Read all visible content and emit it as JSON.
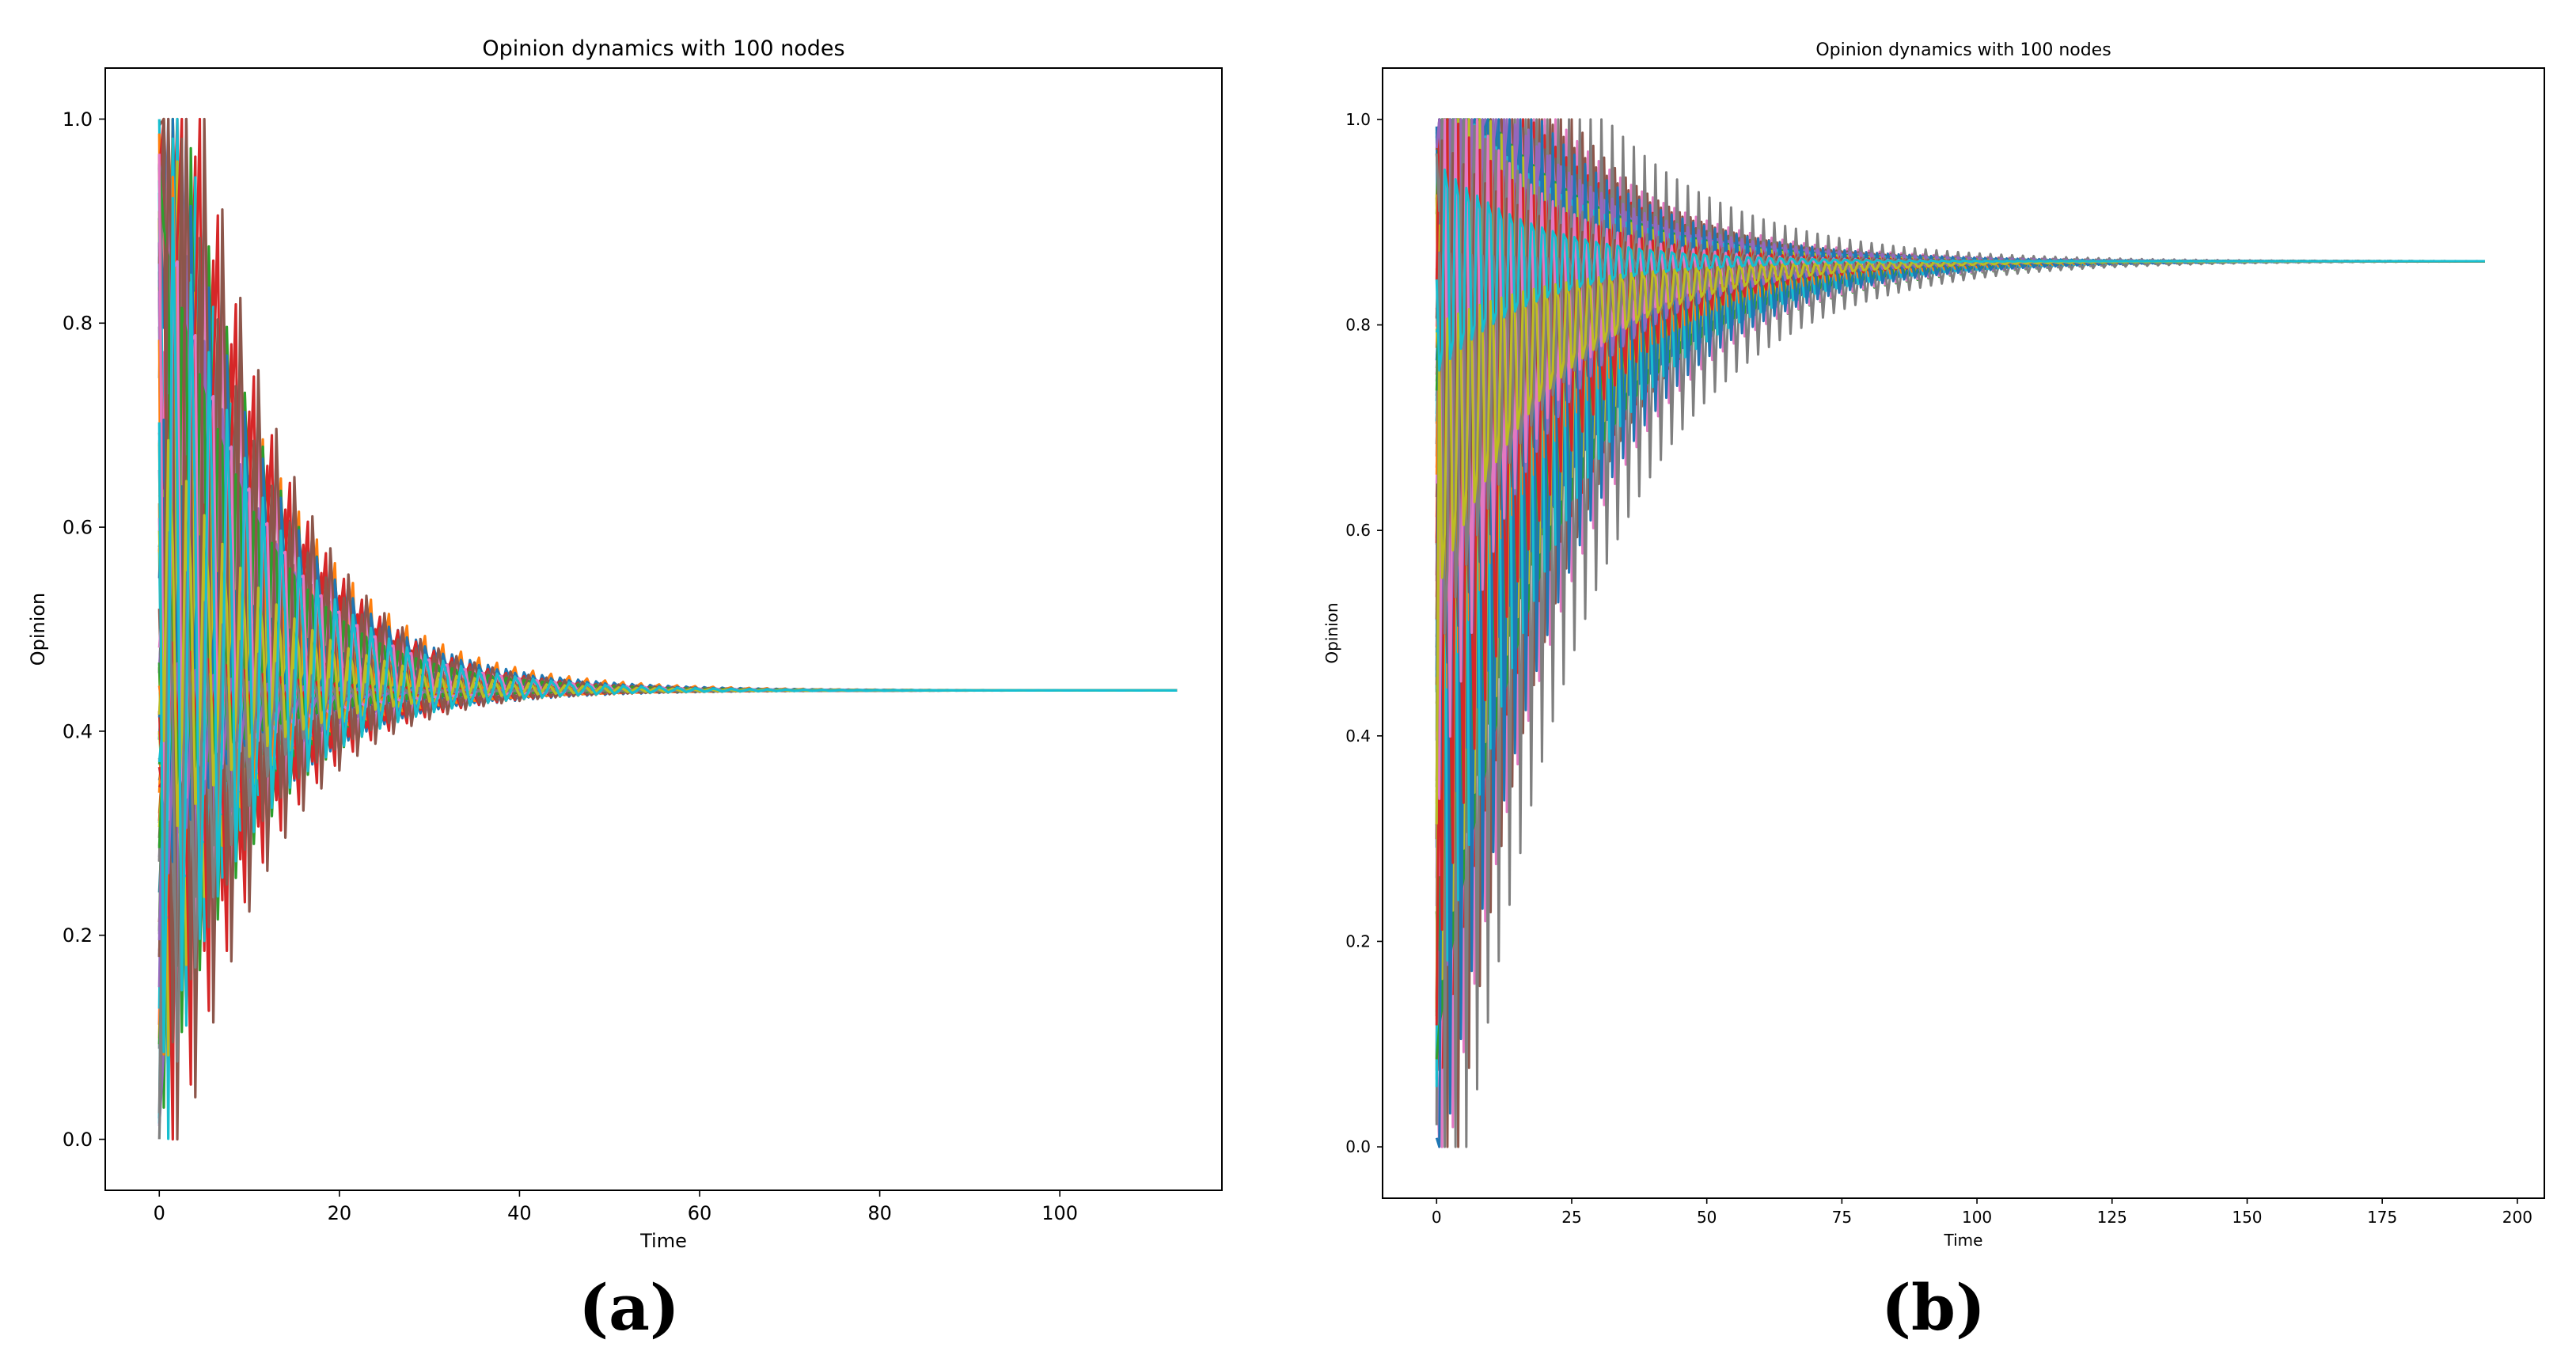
{
  "panels": [
    {
      "caption": "(a)",
      "chart_data": {
        "type": "line",
        "title": "Opinion dynamics with 100 nodes",
        "xlabel": "Time",
        "ylabel": "Opinion",
        "xlim": [
          -6,
          118
        ],
        "ylim": [
          -0.05,
          1.05
        ],
        "xticks": [
          0,
          20,
          40,
          60,
          80,
          100
        ],
        "yticks": [
          0.0,
          0.2,
          0.4,
          0.6,
          0.8,
          1.0
        ],
        "ytick_labels": [
          "0.0",
          "0.2",
          "0.4",
          "0.6",
          "0.8",
          "1.0"
        ],
        "grid": false,
        "legend": "none",
        "num_nodes": 100,
        "t_end": 113,
        "consensus_value": 0.44,
        "oscillation_decay_time": 9,
        "oscillation_period": 2,
        "initial_opinion_range": [
          0.0,
          1.0
        ],
        "series_colors": [
          "#1f77b4",
          "#ff7f0e",
          "#2ca02c",
          "#d62728",
          "#9467bd",
          "#8c564b",
          "#e377c2",
          "#7f7f7f",
          "#bcbd22",
          "#17becf"
        ]
      }
    },
    {
      "caption": "(b)",
      "chart_data": {
        "type": "line",
        "title": "Opinion dynamics with 100 nodes",
        "xlabel": "Time",
        "ylabel": "Opinion",
        "xlim": [
          -10,
          205
        ],
        "ylim": [
          -0.05,
          1.05
        ],
        "xticks": [
          0,
          25,
          50,
          75,
          100,
          125,
          150,
          175,
          200
        ],
        "yticks": [
          0.0,
          0.2,
          0.4,
          0.6,
          0.8,
          1.0
        ],
        "ytick_labels": [
          "0.0",
          "0.2",
          "0.4",
          "0.6",
          "0.8",
          "1.0"
        ],
        "grid": false,
        "legend": "none",
        "num_nodes": 100,
        "t_end": 194,
        "consensus_value": 0.862,
        "oscillation_decay_time": 18,
        "oscillation_period": 2,
        "initial_opinion_range": [
          0.0,
          1.0
        ],
        "series_colors": [
          "#1f77b4",
          "#ff7f0e",
          "#2ca02c",
          "#d62728",
          "#9467bd",
          "#8c564b",
          "#e377c2",
          "#7f7f7f",
          "#bcbd22",
          "#17becf"
        ]
      }
    }
  ]
}
